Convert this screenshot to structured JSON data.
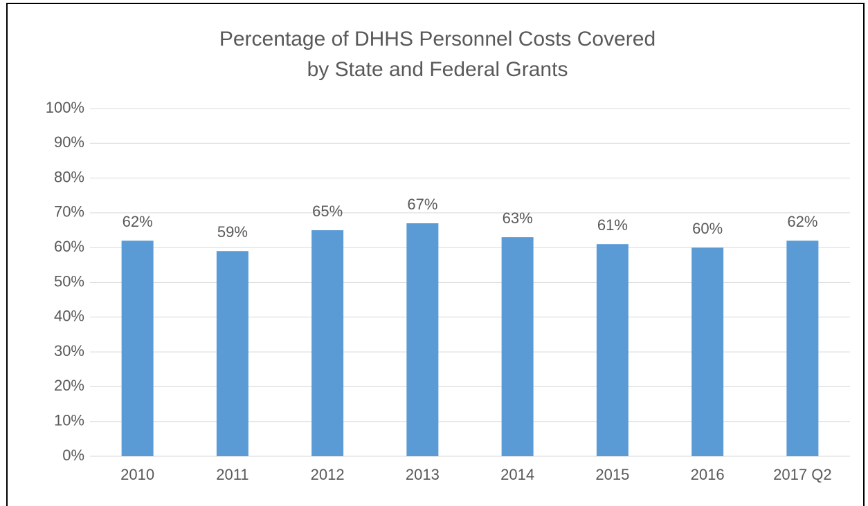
{
  "chart_data": {
    "type": "bar",
    "title": [
      "Percentage of DHHS Personnel Costs Covered",
      "by State and Federal Grants"
    ],
    "categories": [
      "2010",
      "2011",
      "2012",
      "2013",
      "2014",
      "2015",
      "2016",
      "2017 Q2"
    ],
    "values": [
      62,
      59,
      65,
      67,
      63,
      61,
      60,
      62
    ],
    "value_labels": [
      "62%",
      "59%",
      "65%",
      "67%",
      "63%",
      "61%",
      "60%",
      "62%"
    ],
    "color": "#5b9bd5",
    "ylim": [
      0,
      100
    ],
    "yticks": [
      {
        "value": 0,
        "label": "0%"
      },
      {
        "value": 10,
        "label": "10%"
      },
      {
        "value": 20,
        "label": "20%"
      },
      {
        "value": 30,
        "label": "30%"
      },
      {
        "value": 40,
        "label": "40%"
      },
      {
        "value": 50,
        "label": "50%"
      },
      {
        "value": 60,
        "label": "60%"
      },
      {
        "value": 70,
        "label": "70%"
      },
      {
        "value": 80,
        "label": "80%"
      },
      {
        "value": 90,
        "label": "90%"
      },
      {
        "value": 100,
        "label": "100%"
      }
    ],
    "grid": true
  }
}
